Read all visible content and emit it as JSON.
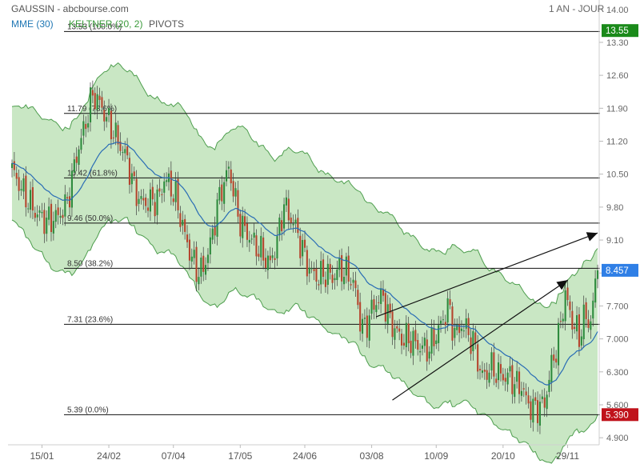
{
  "header": {
    "source": "GAUSSIN - abcbourse.com",
    "period": "1 AN - JOUR",
    "legend": [
      {
        "label": "MME (30)",
        "color": "#1f77b4"
      },
      {
        "label": "KELTNER (20, 2)",
        "color": "#3a9a3a"
      },
      {
        "label": "PIVOTS",
        "color": "#555555"
      }
    ]
  },
  "colors": {
    "up": "#2e8b3e",
    "down": "#b5452e",
    "band_fill": "#c9e7c4",
    "band_line": "#4e9e4e",
    "ema": "#2a6db5",
    "last_price_bg": "#2f7fe6",
    "high_bg": "#1a8a1a",
    "low_bg": "#c0121b"
  },
  "chart_data": {
    "type": "candlestick",
    "x_ticks": [
      "15/01",
      "24/02",
      "07/04",
      "17/05",
      "24/06",
      "03/08",
      "10/09",
      "20/10",
      "29/11"
    ],
    "y_ticks": [
      "14.00",
      "13.30",
      "12.60",
      "11.90",
      "11.20",
      "10.50",
      "9.80",
      "9.10",
      "8.40",
      "7.700",
      "7.000",
      "6.300",
      "5.600",
      "4.900"
    ],
    "ylim": [
      4.75,
      14.2
    ],
    "n_bars": 255,
    "fib_levels": [
      {
        "value": 13.53,
        "label": "13.53  (100.0%)"
      },
      {
        "value": 11.79,
        "label": "11.79  (78.6%)"
      },
      {
        "value": 10.42,
        "label": "10.42  (61.8%)"
      },
      {
        "value": 9.46,
        "label": "9.46  (50.0%)"
      },
      {
        "value": 8.5,
        "label": "8.50  (38.2%)"
      },
      {
        "value": 7.31,
        "label": "7.31  (23.6%)"
      },
      {
        "value": 5.39,
        "label": "5.39  (0.0%)"
      }
    ],
    "price_badges": [
      {
        "value": 13.55,
        "label": "13.55",
        "kind": "high"
      },
      {
        "value": 8.457,
        "label": "8.457",
        "kind": "last"
      },
      {
        "value": 5.39,
        "label": "5.390",
        "kind": "low"
      }
    ],
    "price_path": [
      [
        0,
        10.6
      ],
      [
        5,
        10.1
      ],
      [
        10,
        9.7
      ],
      [
        15,
        9.5
      ],
      [
        20,
        9.6
      ],
      [
        24,
        9.9
      ],
      [
        28,
        10.9
      ],
      [
        32,
        11.6
      ],
      [
        35,
        12.2
      ],
      [
        38,
        12.0
      ],
      [
        40,
        11.8
      ],
      [
        43,
        11.5
      ],
      [
        46,
        11.2
      ],
      [
        50,
        10.8
      ],
      [
        53,
        10.2
      ],
      [
        56,
        9.9
      ],
      [
        60,
        9.9
      ],
      [
        64,
        10.0
      ],
      [
        66,
        10.4
      ],
      [
        68,
        10.3
      ],
      [
        71,
        10.0
      ],
      [
        73,
        9.6
      ],
      [
        75,
        9.2
      ],
      [
        78,
        8.7
      ],
      [
        81,
        8.4
      ],
      [
        83,
        8.5
      ],
      [
        86,
        9.0
      ],
      [
        89,
        9.8
      ],
      [
        91,
        10.2
      ],
      [
        94,
        10.6
      ],
      [
        96,
        10.2
      ],
      [
        98,
        9.6
      ],
      [
        101,
        9.3
      ],
      [
        104,
        9.1
      ],
      [
        107,
        8.9
      ],
      [
        110,
        8.7
      ],
      [
        112,
        8.6
      ],
      [
        114,
        8.9
      ],
      [
        116,
        9.3
      ],
      [
        118,
        9.9
      ],
      [
        120,
        9.6
      ],
      [
        122,
        9.5
      ],
      [
        124,
        9.2
      ],
      [
        126,
        8.9
      ],
      [
        128,
        8.6
      ],
      [
        130,
        8.4
      ],
      [
        133,
        8.3
      ],
      [
        136,
        8.4
      ],
      [
        139,
        8.3
      ],
      [
        142,
        8.5
      ],
      [
        145,
        8.4
      ],
      [
        147,
        8.3
      ],
      [
        149,
        8.0
      ],
      [
        151,
        7.4
      ],
      [
        153,
        7.2
      ],
      [
        155,
        7.5
      ],
      [
        158,
        7.8
      ],
      [
        161,
        7.9
      ],
      [
        163,
        7.5
      ],
      [
        166,
        7.2
      ],
      [
        169,
        7.0
      ],
      [
        172,
        7.0
      ],
      [
        175,
        6.9
      ],
      [
        178,
        6.8
      ],
      [
        181,
        6.8
      ],
      [
        183,
        7.0
      ],
      [
        185,
        7.2
      ],
      [
        187,
        7.4
      ],
      [
        189,
        7.7
      ],
      [
        191,
        7.3
      ],
      [
        193,
        7.1
      ],
      [
        195,
        7.3
      ],
      [
        197,
        7.2
      ],
      [
        199,
        7.0
      ],
      [
        201,
        6.8
      ],
      [
        203,
        6.3
      ],
      [
        205,
        6.2
      ],
      [
        207,
        6.4
      ],
      [
        210,
        6.3
      ],
      [
        213,
        6.2
      ],
      [
        216,
        6.2
      ],
      [
        219,
        6.0
      ],
      [
        221,
        6.0
      ],
      [
        223,
        5.7
      ],
      [
        225,
        5.55
      ],
      [
        227,
        5.5
      ],
      [
        229,
        5.6
      ],
      [
        231,
        5.6
      ],
      [
        233,
        6.2
      ],
      [
        236,
        6.8
      ],
      [
        238,
        7.3
      ],
      [
        240,
        8.0
      ],
      [
        242,
        7.5
      ],
      [
        244,
        7.3
      ],
      [
        246,
        7.0
      ],
      [
        248,
        7.5
      ],
      [
        250,
        7.3
      ],
      [
        252,
        7.7
      ],
      [
        254,
        8.457
      ]
    ],
    "arrows": [
      {
        "from": [
          158,
          7.47
        ],
        "to": [
          254,
          9.25
        ]
      },
      {
        "from": [
          165,
          5.7
        ],
        "to": [
          241,
          8.25
        ]
      }
    ]
  }
}
